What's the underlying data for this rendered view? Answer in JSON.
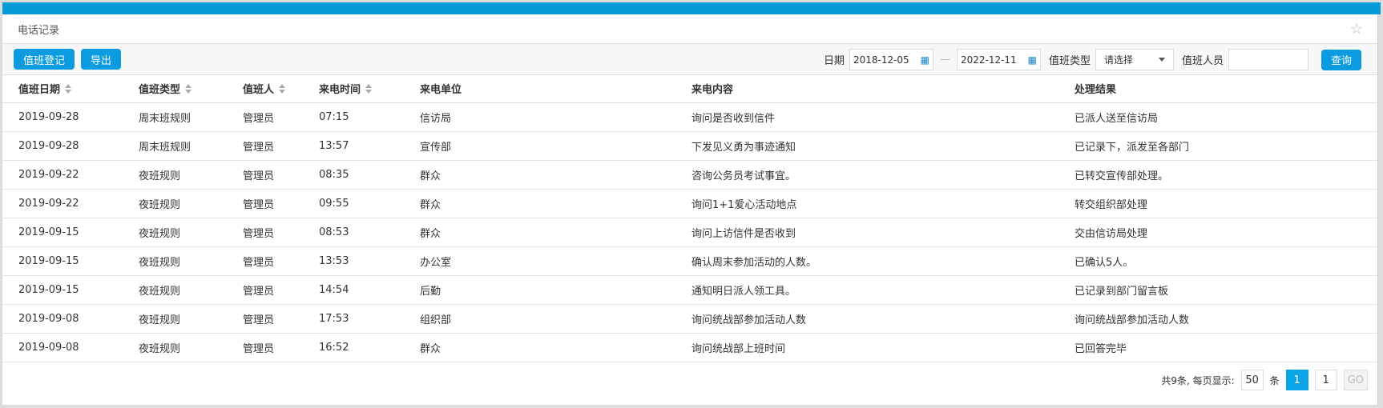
{
  "title": "电话记录",
  "toolbar": {
    "register": "值班登记",
    "export": "导出"
  },
  "filters": {
    "date_label": "日期",
    "date_from": "2018-12-05",
    "date_to": "2022-12-11",
    "type_label": "值班类型",
    "type_value": "请选择",
    "person_label": "值班人员",
    "person_value": "",
    "query": "查询"
  },
  "columns": [
    "值班日期",
    "值班类型",
    "值班人",
    "来电时间",
    "来电单位",
    "来电内容",
    "处理结果"
  ],
  "rows": [
    [
      "2019-09-28",
      "周末班规则",
      "管理员",
      "07:15",
      "信访局",
      "询问是否收到信件",
      "已派人送至信访局"
    ],
    [
      "2019-09-28",
      "周末班规则",
      "管理员",
      "13:57",
      "宣传部",
      "下发见义勇为事迹通知",
      "已记录下，派发至各部门"
    ],
    [
      "2019-09-22",
      "夜班规则",
      "管理员",
      "08:35",
      "群众",
      "咨询公务员考试事宜。",
      "已转交宣传部处理。"
    ],
    [
      "2019-09-22",
      "夜班规则",
      "管理员",
      "09:55",
      "群众",
      "询问1+1爱心活动地点",
      "转交组织部处理"
    ],
    [
      "2019-09-15",
      "夜班规则",
      "管理员",
      "08:53",
      "群众",
      "询问上访信件是否收到",
      "交由信访局处理"
    ],
    [
      "2019-09-15",
      "夜班规则",
      "管理员",
      "13:53",
      "办公室",
      "确认周末参加活动的人数。",
      "已确认5人。"
    ],
    [
      "2019-09-15",
      "夜班规则",
      "管理员",
      "14:54",
      "后勤",
      "通知明日派人领工具。",
      "已记录到部门留言板"
    ],
    [
      "2019-09-08",
      "夜班规则",
      "管理员",
      "17:53",
      "组织部",
      "询问统战部参加活动人数",
      "询问统战部参加活动人数"
    ],
    [
      "2019-09-08",
      "夜班规则",
      "管理员",
      "16:52",
      "群众",
      "询问统战部上班时间",
      "已回答完毕"
    ]
  ],
  "pager": {
    "total": "共9条, 每页显示:",
    "page_size": "50",
    "unit": "条",
    "current": "1",
    "goto": "1",
    "go": "GO"
  },
  "colors": {
    "accent": "#069ad9"
  }
}
